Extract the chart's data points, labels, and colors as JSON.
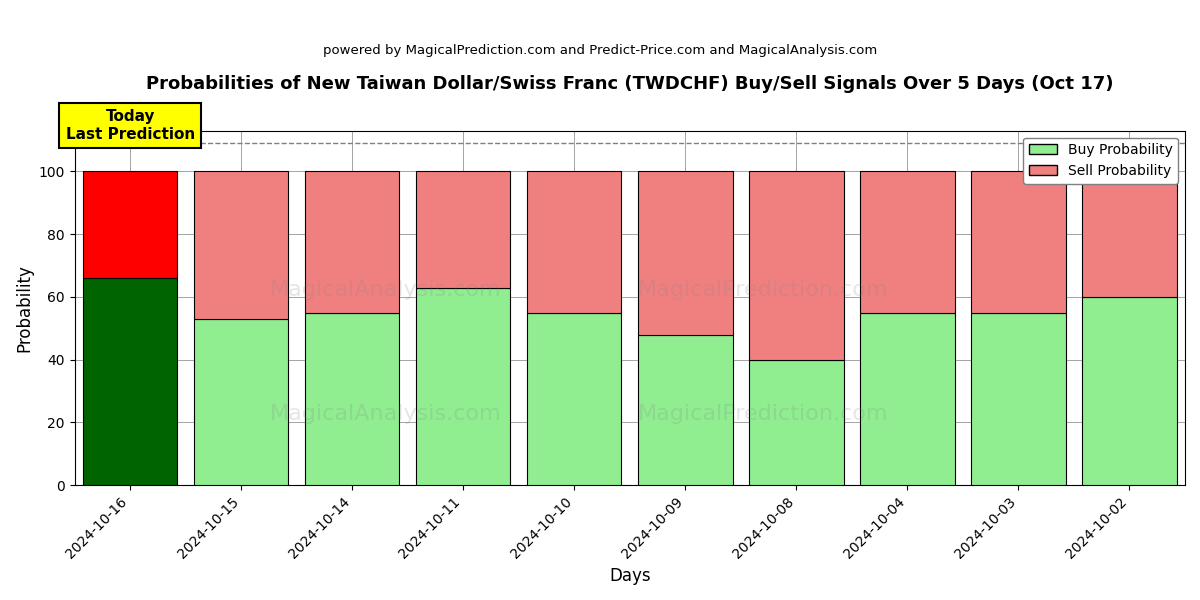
{
  "title": "Probabilities of New Taiwan Dollar/Swiss Franc (TWDCHF) Buy/Sell Signals Over 5 Days (Oct 17)",
  "subtitle": "powered by MagicalPrediction.com and Predict-Price.com and MagicalAnalysis.com",
  "xlabel": "Days",
  "ylabel": "Probability",
  "categories": [
    "2024-10-16",
    "2024-10-15",
    "2024-10-14",
    "2024-10-11",
    "2024-10-10",
    "2024-10-09",
    "2024-10-08",
    "2024-10-04",
    "2024-10-03",
    "2024-10-02"
  ],
  "buy_values": [
    66,
    53,
    55,
    63,
    55,
    48,
    40,
    55,
    55,
    60
  ],
  "sell_values": [
    34,
    47,
    45,
    37,
    45,
    52,
    60,
    45,
    45,
    40
  ],
  "today_buy_color": "#006400",
  "today_sell_color": "#ff0000",
  "buy_color": "#90ee90",
  "sell_color": "#f08080",
  "today_label_bg": "#ffff00",
  "today_label_text": "Today\nLast Prediction",
  "legend_buy": "Buy Probability",
  "legend_sell": "Sell Probability",
  "ylim": [
    0,
    113
  ],
  "dashed_line_y": 109,
  "watermark1": "MagicalAnalysis.com",
  "watermark2": "MagicalPrediction.com",
  "watermark3": "MagicalPrediction.com",
  "figsize": [
    12,
    6
  ],
  "dpi": 100
}
